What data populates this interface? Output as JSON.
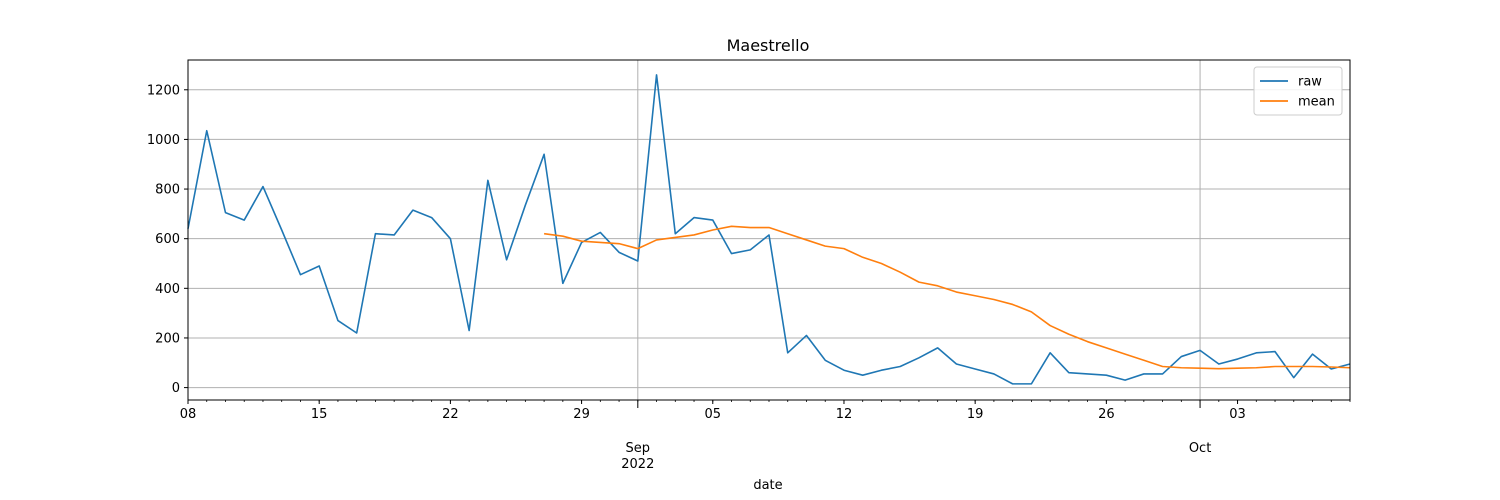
{
  "chart_data": {
    "type": "line",
    "title": "Maestrello",
    "xlabel": "date",
    "ylabel": "",
    "ylim": [
      -50,
      1320
    ],
    "xlim": [
      "2022-08-08",
      "2022-10-09"
    ],
    "grid": true,
    "legend_position": "top-right",
    "y_ticks": [
      0,
      200,
      400,
      600,
      800,
      1000,
      1200
    ],
    "x_ticks": [
      {
        "date": "2022-08-08",
        "label": "08",
        "major": false
      },
      {
        "date": "2022-08-15",
        "label": "15",
        "major": false
      },
      {
        "date": "2022-08-22",
        "label": "22",
        "major": false
      },
      {
        "date": "2022-08-29",
        "label": "29",
        "major": false
      },
      {
        "date": "2022-09-01",
        "label": "Sep\n2022",
        "major": true
      },
      {
        "date": "2022-09-05",
        "label": "05",
        "major": false
      },
      {
        "date": "2022-09-12",
        "label": "12",
        "major": false
      },
      {
        "date": "2022-09-19",
        "label": "19",
        "major": false
      },
      {
        "date": "2022-09-26",
        "label": "26",
        "major": false
      },
      {
        "date": "2022-10-01",
        "label": "Oct",
        "major": true
      },
      {
        "date": "2022-10-03",
        "label": "03",
        "major": false
      }
    ],
    "series": [
      {
        "name": "raw",
        "color": "#1f77b4",
        "x": [
          "2022-08-08",
          "2022-08-09",
          "2022-08-10",
          "2022-08-11",
          "2022-08-12",
          "2022-08-13",
          "2022-08-14",
          "2022-08-15",
          "2022-08-16",
          "2022-08-17",
          "2022-08-18",
          "2022-08-19",
          "2022-08-20",
          "2022-08-21",
          "2022-08-22",
          "2022-08-23",
          "2022-08-24",
          "2022-08-25",
          "2022-08-26",
          "2022-08-27",
          "2022-08-28",
          "2022-08-29",
          "2022-08-30",
          "2022-08-31",
          "2022-09-01",
          "2022-09-02",
          "2022-09-03",
          "2022-09-04",
          "2022-09-05",
          "2022-09-06",
          "2022-09-07",
          "2022-09-08",
          "2022-09-09",
          "2022-09-10",
          "2022-09-11",
          "2022-09-12",
          "2022-09-13",
          "2022-09-14",
          "2022-09-15",
          "2022-09-16",
          "2022-09-17",
          "2022-09-18",
          "2022-09-19",
          "2022-09-20",
          "2022-09-21",
          "2022-09-22",
          "2022-09-23",
          "2022-09-24",
          "2022-09-25",
          "2022-09-26",
          "2022-09-27",
          "2022-09-28",
          "2022-09-29",
          "2022-09-30",
          "2022-10-01",
          "2022-10-02",
          "2022-10-03",
          "2022-10-04",
          "2022-10-05",
          "2022-10-06",
          "2022-10-07",
          "2022-10-08",
          "2022-10-09"
        ],
        "values": [
          640,
          1035,
          705,
          675,
          810,
          635,
          455,
          490,
          270,
          220,
          620,
          615,
          715,
          685,
          600,
          230,
          835,
          515,
          735,
          940,
          420,
          585,
          625,
          545,
          510,
          1260,
          620,
          685,
          675,
          540,
          555,
          615,
          140,
          210,
          110,
          70,
          50,
          70,
          85,
          120,
          160,
          95,
          75,
          55,
          15,
          15,
          140,
          60,
          55,
          50,
          30,
          55,
          55,
          125,
          150,
          95,
          115,
          140,
          145,
          40,
          135,
          75,
          95
        ]
      },
      {
        "name": "mean",
        "color": "#ff7f0e",
        "x": [
          "2022-08-27",
          "2022-08-28",
          "2022-08-29",
          "2022-08-30",
          "2022-08-31",
          "2022-09-01",
          "2022-09-02",
          "2022-09-03",
          "2022-09-04",
          "2022-09-05",
          "2022-09-06",
          "2022-09-07",
          "2022-09-08",
          "2022-09-09",
          "2022-09-10",
          "2022-09-11",
          "2022-09-12",
          "2022-09-13",
          "2022-09-14",
          "2022-09-15",
          "2022-09-16",
          "2022-09-17",
          "2022-09-18",
          "2022-09-19",
          "2022-09-20",
          "2022-09-21",
          "2022-09-22",
          "2022-09-23",
          "2022-09-24",
          "2022-09-25",
          "2022-09-26",
          "2022-09-27",
          "2022-09-28",
          "2022-09-29",
          "2022-09-30",
          "2022-10-01",
          "2022-10-02",
          "2022-10-03",
          "2022-10-04",
          "2022-10-05",
          "2022-10-06",
          "2022-10-07",
          "2022-10-08",
          "2022-10-09"
        ],
        "values": [
          620,
          610,
          590,
          585,
          580,
          560,
          595,
          605,
          615,
          635,
          650,
          645,
          645,
          620,
          595,
          570,
          560,
          525,
          500,
          465,
          425,
          410,
          385,
          370,
          355,
          335,
          305,
          250,
          215,
          185,
          160,
          135,
          110,
          85,
          80,
          78,
          76,
          78,
          80,
          85,
          85,
          85,
          83,
          80
        ]
      }
    ]
  }
}
